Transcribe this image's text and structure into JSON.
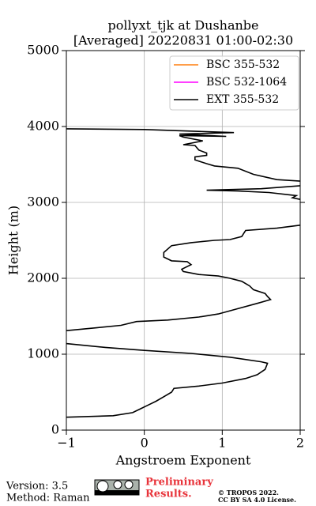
{
  "chart_data": {
    "type": "line",
    "title": "pollyxt_tjk at Dushanbe",
    "subtitle": "[Averaged] 20220831 01:00-02:30",
    "x_label": "Angstroem Exponent",
    "y_label": "Height (m)",
    "xlim": [
      -1,
      2
    ],
    "ylim": [
      0,
      5000
    ],
    "xticks": [
      {
        "value": -1,
        "label": "−1"
      },
      0,
      1,
      2
    ],
    "yticks": [
      0,
      1000,
      2000,
      3000,
      4000,
      5000
    ],
    "grid": true,
    "legend": "upper right",
    "series": [
      {
        "name": "BSC 355-532",
        "color": "#ff7f0e"
      },
      {
        "name": "BSC 532-1064",
        "color": "#ff00ff"
      },
      {
        "name": "EXT 355-532",
        "color": "#000000",
        "x": [
          -1.0,
          -0.4,
          -0.15,
          -0.05,
          0.05,
          0.15,
          0.25,
          0.35,
          0.38,
          0.7,
          1.0,
          1.3,
          1.45,
          1.55,
          1.58,
          1.5,
          1.1,
          0.6,
          0.0,
          -0.5,
          -1.0,
          null,
          -1.0,
          -0.6,
          -0.3,
          -0.1,
          0.3,
          0.7,
          0.95,
          1.2,
          1.45,
          1.62,
          1.58,
          1.55,
          1.4,
          1.35,
          1.25,
          1.1,
          0.95,
          0.7,
          0.5,
          0.48,
          0.6,
          0.55,
          0.35,
          0.25,
          0.25,
          0.35,
          0.6,
          0.9,
          1.1,
          1.25,
          1.28,
          1.3,
          1.7,
          2.0,
          null,
          2.0,
          1.9,
          1.95,
          1.6,
          1.2,
          0.8,
          1.5,
          2.0,
          null,
          2.0,
          1.7,
          1.4,
          1.2,
          0.9,
          0.8,
          0.65,
          0.65,
          0.8,
          0.8,
          0.7,
          0.65,
          0.5,
          0.75,
          0.5,
          0.45,
          1.05,
          0.45,
          1.15,
          0.0,
          -1.0
        ],
        "y": [
          170,
          190,
          230,
          280,
          330,
          380,
          440,
          500,
          550,
          580,
          620,
          680,
          730,
          800,
          880,
          900,
          960,
          1010,
          1050,
          1090,
          1140,
          null,
          1310,
          1350,
          1380,
          1430,
          1450,
          1490,
          1530,
          1600,
          1670,
          1720,
          1760,
          1800,
          1850,
          1900,
          1960,
          2000,
          2030,
          2050,
          2090,
          2120,
          2180,
          2220,
          2230,
          2280,
          2340,
          2430,
          2470,
          2500,
          2510,
          2550,
          2600,
          2630,
          2660,
          2700,
          null,
          3040,
          3060,
          3090,
          3130,
          3150,
          3160,
          3180,
          3220,
          null,
          3280,
          3300,
          3370,
          3450,
          3480,
          3510,
          3560,
          3600,
          3620,
          3650,
          3690,
          3750,
          3760,
          3810,
          3860,
          3880,
          3870,
          3900,
          3920,
          3960,
          3970
        ]
      }
    ]
  },
  "footer": {
    "version": "Version: 3.5",
    "method": "Method: Raman",
    "status": "Preliminary\nResults.",
    "copyright": "© TROPOS 2022.",
    "license": "CC BY SA 4.0 License."
  }
}
